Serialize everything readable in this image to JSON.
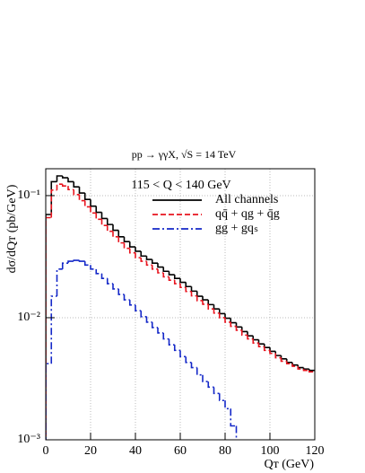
{
  "chart_data": {
    "type": "histogram",
    "title": "pp → γγX, √S = 14 TeV",
    "annotation": "115 < Q < 140 GeV",
    "x_label": "Qᴛ (GeV)",
    "y_label": "dσ/dQᴛ (pb/GeV)",
    "log_y": true,
    "grid": true,
    "bins": [
      0,
      2.5,
      5,
      7.5,
      10,
      12.5,
      15,
      17.5,
      20,
      22.5,
      25,
      27.5,
      30,
      32.5,
      35,
      37.5,
      40,
      42.5,
      45,
      47.5,
      50,
      52.5,
      55,
      57.5,
      60,
      62.5,
      65,
      67.5,
      70,
      72.5,
      75,
      77.5,
      80,
      82.5,
      85,
      87.5,
      90,
      92.5,
      95,
      97.5,
      100,
      102.5,
      105,
      107.5,
      110,
      112.5,
      115,
      117.5,
      120
    ],
    "series": [
      {
        "name": "All channels",
        "color": "#000000",
        "dash": "none",
        "values": [
          0.07,
          0.13,
          0.145,
          0.14,
          0.13,
          0.118,
          0.105,
          0.093,
          0.082,
          0.073,
          0.065,
          0.058,
          0.052,
          0.046,
          0.042,
          0.038,
          0.035,
          0.032,
          0.03,
          0.028,
          0.026,
          0.024,
          0.0225,
          0.021,
          0.0195,
          0.018,
          0.0165,
          0.015,
          0.014,
          0.0128,
          0.0118,
          0.0108,
          0.0099,
          0.0091,
          0.0084,
          0.0077,
          0.0071,
          0.0066,
          0.0061,
          0.0057,
          0.0053,
          0.0049,
          0.0046,
          0.0043,
          0.0041,
          0.0039,
          0.0038,
          0.0037
        ]
      },
      {
        "name": "qq̄ +  qg + q̄g",
        "color": "#e8141e",
        "dash": "6 3",
        "values": [
          0.066,
          0.111,
          0.124,
          0.12,
          0.112,
          0.102,
          0.091,
          0.081,
          0.072,
          0.064,
          0.057,
          0.051,
          0.046,
          0.041,
          0.037,
          0.034,
          0.031,
          0.029,
          0.027,
          0.025,
          0.0233,
          0.0216,
          0.0203,
          0.019,
          0.0177,
          0.0164,
          0.0151,
          0.0138,
          0.0129,
          0.0118,
          0.0109,
          0.01,
          0.0092,
          0.0085,
          0.0079,
          0.0072,
          0.0067,
          0.0062,
          0.0058,
          0.0054,
          0.0051,
          0.0047,
          0.0044,
          0.0042,
          0.004,
          0.0038,
          0.0037,
          0.0036
        ]
      },
      {
        "name": "gg + gqₛ",
        "color": "#1428c8",
        "dash": "8 3 2 3",
        "values": [
          0.0042,
          0.015,
          0.025,
          0.028,
          0.029,
          0.0295,
          0.029,
          0.027,
          0.025,
          0.023,
          0.021,
          0.019,
          0.0172,
          0.0155,
          0.014,
          0.0127,
          0.0114,
          0.0102,
          0.0092,
          0.0083,
          0.0075,
          0.0067,
          0.006,
          0.0054,
          0.0048,
          0.0043,
          0.0039,
          0.0034,
          0.003,
          0.0027,
          0.0024,
          0.0021,
          0.0018,
          0.0013,
          null,
          null,
          null,
          null,
          null,
          null,
          null,
          null,
          null,
          null,
          null,
          null,
          null,
          null
        ]
      }
    ],
    "xlim": [
      0,
      120
    ],
    "xticks": [
      0,
      20,
      40,
      60,
      80,
      100,
      120
    ],
    "ylim": [
      0.001,
      0.166
    ],
    "yticks": [
      {
        "value": 0.001,
        "label": "10⁻³"
      },
      {
        "value": 0.01,
        "label": "10⁻²"
      },
      {
        "value": 0.1,
        "label": "10⁻¹"
      }
    ]
  }
}
